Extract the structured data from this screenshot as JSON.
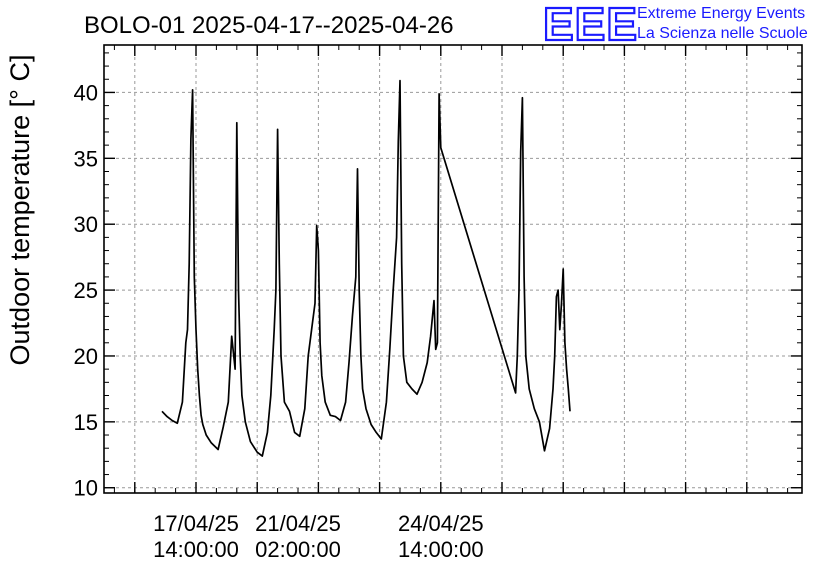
{
  "chart_data": {
    "type": "line",
    "title": "BOLO-01 2025-04-17--2025-04-26",
    "ylabel": "Outdoor temperature [° C]",
    "xlabel": "",
    "ylim": [
      9.6,
      43.6
    ],
    "y_ticks": [
      10,
      15,
      20,
      25,
      30,
      35,
      40
    ],
    "x_ticks": [
      {
        "date": "17/04/25",
        "time": "14:00:00"
      },
      {
        "date": "21/04/25",
        "time": "02:00:00"
      },
      {
        "date": "24/04/25",
        "time": "14:00:00"
      }
    ],
    "grid": true,
    "series": [
      {
        "name": "",
        "color": "#000000",
        "x": [
          "2025-04-16T18:00",
          "2025-04-16T21:00",
          "2025-04-17T00:00",
          "2025-04-17T03:00",
          "2025-04-17T06:00",
          "2025-04-17T08:00",
          "2025-04-17T09:00",
          "2025-04-17T10:00",
          "2025-04-17T11:00",
          "2025-04-17T12:00",
          "2025-04-17T13:00",
          "2025-04-17T14:00",
          "2025-04-17T15:00",
          "2025-04-17T16:00",
          "2025-04-17T17:00",
          "2025-04-17T18:00",
          "2025-04-17T20:00",
          "2025-04-17T23:00",
          "2025-04-18T03:00",
          "2025-04-18T06:00",
          "2025-04-18T09:00",
          "2025-04-18T11:00",
          "2025-04-18T13:00",
          "2025-04-18T14:00",
          "2025-04-18T15:00",
          "2025-04-18T16:00",
          "2025-04-18T17:00",
          "2025-04-18T19:00",
          "2025-04-18T22:00",
          "2025-04-19T02:00",
          "2025-04-19T05:00",
          "2025-04-19T08:00",
          "2025-04-19T10:00",
          "2025-04-19T12:00",
          "2025-04-19T13:00",
          "2025-04-19T14:00",
          "2025-04-19T15:00",
          "2025-04-19T16:00",
          "2025-04-19T18:00",
          "2025-04-19T21:00",
          "2025-04-20T00:00",
          "2025-04-20T03:00",
          "2025-04-20T06:00",
          "2025-04-20T08:00",
          "2025-04-20T10:00",
          "2025-04-20T12:00",
          "2025-04-20T13:00",
          "2025-04-20T14:00",
          "2025-04-20T15:00",
          "2025-04-20T16:00",
          "2025-04-20T18:00",
          "2025-04-20T21:00",
          "2025-04-21T00:00",
          "2025-04-21T03:00",
          "2025-04-21T06:00",
          "2025-04-21T08:00",
          "2025-04-21T10:00",
          "2025-04-21T12:00",
          "2025-04-21T13:00",
          "2025-04-21T14:00",
          "2025-04-21T15:00",
          "2025-04-21T16:00",
          "2025-04-21T18:00",
          "2025-04-21T21:00",
          "2025-04-22T00:00",
          "2025-04-22T03:00",
          "2025-04-22T06:00",
          "2025-04-22T08:00",
          "2025-04-22T10:00",
          "2025-04-22T12:00",
          "2025-04-22T13:00",
          "2025-04-22T14:00",
          "2025-04-22T15:00",
          "2025-04-22T16:00",
          "2025-04-22T18:00",
          "2025-04-22T21:00",
          "2025-04-23T00:00",
          "2025-04-23T03:00",
          "2025-04-23T06:00",
          "2025-04-23T08:00",
          "2025-04-23T10:00",
          "2025-04-23T11:00",
          "2025-04-23T12:00",
          "2025-04-23T13:00",
          "2025-04-23T14:00",
          "2025-04-25T10:00",
          "2025-04-25T11:00",
          "2025-04-25T12:00",
          "2025-04-25T13:00",
          "2025-04-25T14:00",
          "2025-04-25T15:00",
          "2025-04-25T16:00",
          "2025-04-25T18:00",
          "2025-04-25T21:00",
          "2025-04-26T00:00",
          "2025-04-26T03:00",
          "2025-04-26T06:00",
          "2025-04-26T08:00",
          "2025-04-26T09:00",
          "2025-04-26T10:00",
          "2025-04-26T11:00",
          "2025-04-26T12:00",
          "2025-04-26T13:00",
          "2025-04-26T14:00",
          "2025-04-26T15:00",
          "2025-04-26T16:00",
          "2025-04-26T17:00",
          "2025-04-26T18:00"
        ],
        "y": [
          15.8,
          15.4,
          15.1,
          14.9,
          16.5,
          21.0,
          22.0,
          27.0,
          36.5,
          40.2,
          26.0,
          22.0,
          19.0,
          17.0,
          15.5,
          14.8,
          14.0,
          13.4,
          12.9,
          14.6,
          16.5,
          21.5,
          19.0,
          37.7,
          25.0,
          20.0,
          17.0,
          15.0,
          13.5,
          12.7,
          12.4,
          14.2,
          17.0,
          22.0,
          25.0,
          37.2,
          27.0,
          20.0,
          16.5,
          15.8,
          14.2,
          13.9,
          16.0,
          20.0,
          22.0,
          24.0,
          29.9,
          28.0,
          21.0,
          18.5,
          16.5,
          15.5,
          15.4,
          15.1,
          16.5,
          19.5,
          23.0,
          26.0,
          34.2,
          25.0,
          20.0,
          17.5,
          16.0,
          14.8,
          14.2,
          13.7,
          16.5,
          20.5,
          25.0,
          29.0,
          36.3,
          40.9,
          27.0,
          20.0,
          18.0,
          17.5,
          17.1,
          18.0,
          19.5,
          21.5,
          24.2,
          20.5,
          21.0,
          39.9,
          35.8,
          17.2,
          20.0,
          25.0,
          35.5,
          39.6,
          26.0,
          20.0,
          17.5,
          16.0,
          15.0,
          12.8,
          14.5,
          17.5,
          20.0,
          24.5,
          25.0,
          22.0,
          24.0,
          26.6,
          21.0,
          19.0,
          17.5,
          15.8
        ]
      }
    ]
  },
  "logo": {
    "mark": "EEE",
    "line1": "Extreme Energy Events",
    "line2": "La Scienza nelle Scuole",
    "color": "#1a1aff"
  }
}
